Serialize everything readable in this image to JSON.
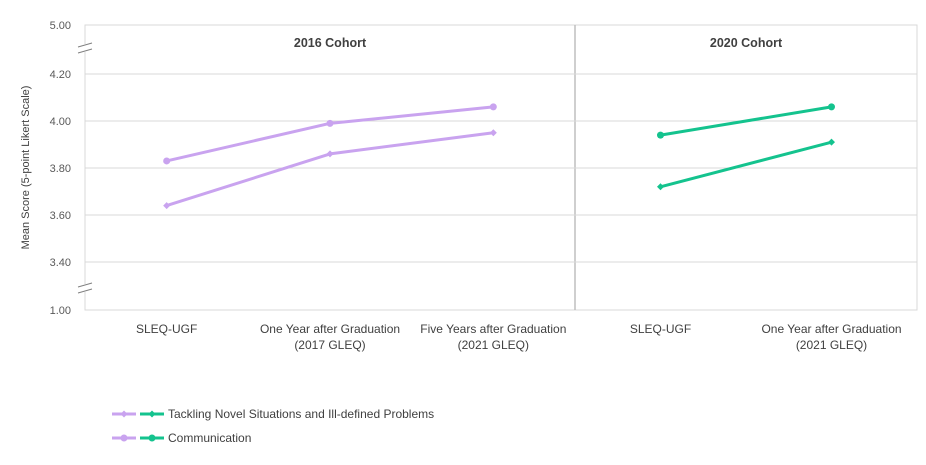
{
  "chart_data": {
    "type": "line",
    "ylabel": "Mean Score (5-point Likert Scale)",
    "y_ticks": [
      "5.00",
      "4.20",
      "4.00",
      "3.80",
      "3.60",
      "3.40",
      "1.00"
    ],
    "y_axis_break": true,
    "ylim_visible": [
      3.3,
      4.3
    ],
    "grid": true,
    "legend_position": "bottom-left",
    "colors": {
      "cohort_2016": "#c9a3ef",
      "cohort_2020": "#14c38e"
    },
    "panels": [
      {
        "title": "2016 Cohort",
        "categories": [
          "SLEQ-UGF",
          "One Year after Graduation\n(2017 GLEQ)",
          "Five Years after Graduation\n(2021 GLEQ)"
        ],
        "series": [
          {
            "name": "Tackling Novel Situations and Ill-defined Problems",
            "marker": "diamond",
            "values": [
              3.64,
              3.86,
              3.95
            ]
          },
          {
            "name": "Communication",
            "marker": "circle",
            "values": [
              3.83,
              3.99,
              4.06
            ]
          }
        ]
      },
      {
        "title": "2020 Cohort",
        "categories": [
          "SLEQ-UGF",
          "One Year after Graduation\n(2021 GLEQ)"
        ],
        "series": [
          {
            "name": "Tackling Novel Situations and Ill-defined Problems",
            "marker": "diamond",
            "values": [
              3.72,
              3.91
            ]
          },
          {
            "name": "Communication",
            "marker": "circle",
            "values": [
              3.94,
              4.06
            ]
          }
        ]
      }
    ],
    "legend": [
      {
        "label": "Tackling Novel Situations and Ill-defined Problems",
        "marker": "diamond"
      },
      {
        "label": "Communication",
        "marker": "circle"
      }
    ]
  }
}
